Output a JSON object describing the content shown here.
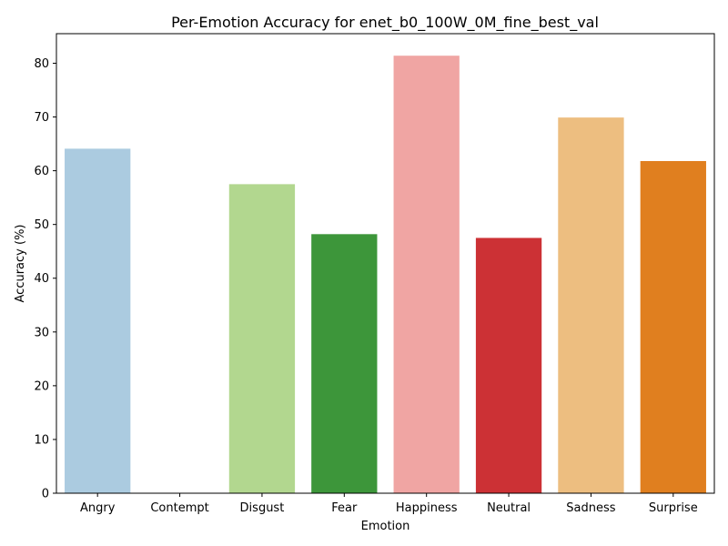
{
  "chart_data": {
    "type": "bar",
    "title": "Per-Emotion Accuracy for enet_b0_100W_0M_fine_best_val",
    "xlabel": "Emotion",
    "ylabel": "Accuracy (%)",
    "categories": [
      "Angry",
      "Contempt",
      "Disgust",
      "Fear",
      "Happiness",
      "Neutral",
      "Sadness",
      "Surprise"
    ],
    "values": [
      64.1,
      0,
      57.5,
      48.2,
      81.4,
      47.5,
      69.9,
      61.8
    ],
    "colors": [
      "#abcbe0",
      "#3a78b0",
      "#b2d78f",
      "#3d963a",
      "#f0a5a3",
      "#cc3135",
      "#edbe80",
      "#e07f1f"
    ],
    "ylim": [
      0,
      85.5
    ],
    "yticks": [
      0,
      10,
      20,
      30,
      40,
      50,
      60,
      70,
      80
    ],
    "grid": false,
    "legend": "none"
  }
}
